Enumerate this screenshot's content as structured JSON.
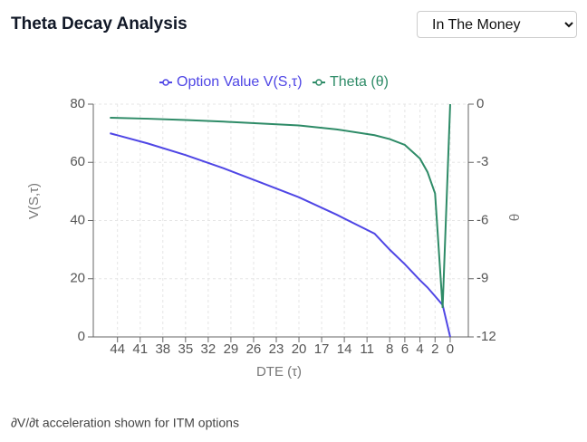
{
  "chart_data": {
    "type": "line",
    "title": "Theta Decay Analysis",
    "x_label": "DTE (τ)",
    "y_label": "V(S,τ)",
    "y2_label": "θ",
    "x": [
      45,
      40,
      35,
      30,
      25,
      20,
      15,
      10,
      8,
      6,
      4,
      3,
      2,
      1,
      0
    ],
    "series": [
      {
        "name": "Option Value V(S,τ)",
        "color": "#4f46e5",
        "values": [
          70,
          66.5,
          62.5,
          58,
          53,
          48,
          42,
          35.5,
          30,
          25,
          19.5,
          17,
          14,
          11,
          0
        ]
      },
      {
        "name": "Theta (θ)",
        "color": "#2e8b67",
        "axis": "y2",
        "values": [
          -0.7,
          -0.75,
          -0.82,
          -0.9,
          -1.0,
          -1.1,
          -1.3,
          -1.6,
          -1.8,
          -2.1,
          -2.8,
          -3.5,
          -4.6,
          -10.5,
          0
        ]
      }
    ],
    "xlim": [
      47.2,
      -2.4
    ],
    "xticks": [
      44,
      41,
      38,
      35,
      32,
      29,
      26,
      23,
      20,
      17,
      14,
      11,
      8,
      6,
      4,
      2,
      0
    ],
    "ylim": [
      0,
      80
    ],
    "yticks": [
      0,
      20,
      40,
      60,
      80
    ],
    "y2lim": [
      -12,
      0
    ],
    "y2ticks": [
      0,
      -3,
      -6,
      -9,
      -12
    ],
    "grid": true,
    "legend": "top"
  },
  "filter": {
    "selected": "In The Money"
  },
  "note": "∂V/∂t acceleration shown for ITM options"
}
